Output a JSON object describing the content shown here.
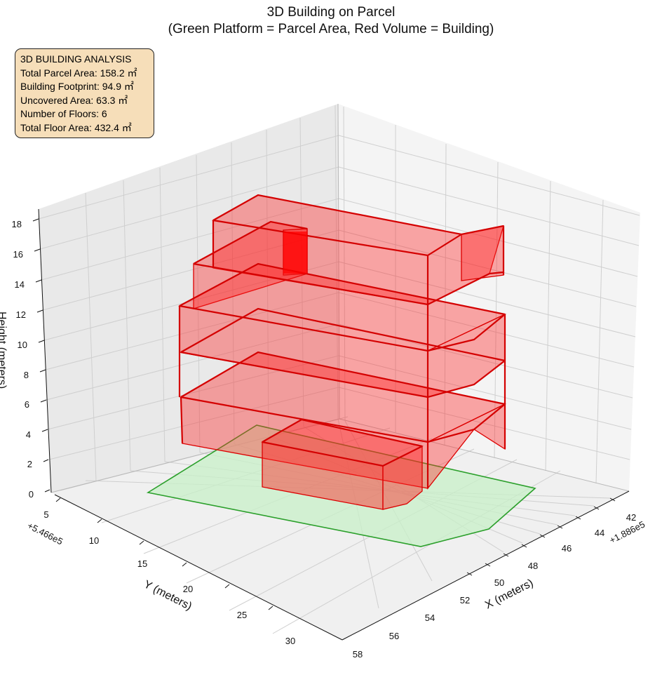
{
  "chart_data": {
    "type": "3d-polygons",
    "title": "3D Building on Parcel",
    "subtitle": "(Green Platform = Parcel Area, Red Volume = Building)",
    "xlabel": "X (meters)",
    "ylabel": "Y (meters)",
    "zlabel": "Height (meters)",
    "x_offset": "+1.886e5",
    "y_offset": "+5.466e5",
    "x_ticks": [
      "42",
      "44",
      "46",
      "48",
      "50",
      "52",
      "54",
      "56",
      "58"
    ],
    "y_ticks": [
      "5",
      "10",
      "15",
      "20",
      "25",
      "30"
    ],
    "z_ticks": [
      "0",
      "2",
      "4",
      "6",
      "8",
      "10",
      "12",
      "14",
      "16",
      "18"
    ],
    "grid": true,
    "colors": {
      "parcel_fill": "#c8f0c8",
      "parcel_edge": "#2ca02c",
      "building_fill": "#ff0000",
      "building_edge": "#dd0000",
      "box_fill": "#f6deb9"
    },
    "legend_box": {
      "heading": "3D BUILDING ANALYSIS",
      "lines": [
        "Total Parcel Area: 158.2 ㎡",
        "Building Footprint: 94.9 ㎡",
        "Uncovered Area: 63.3 ㎡",
        "Number of Floors: 6",
        "Total Floor Area: 432.4 ㎡"
      ]
    },
    "summary": {
      "total_parcel_area_m2": 158.2,
      "building_footprint_m2": 94.9,
      "uncovered_area_m2": 63.3,
      "number_of_floors": 6,
      "total_floor_area_m2": 432.4
    }
  }
}
